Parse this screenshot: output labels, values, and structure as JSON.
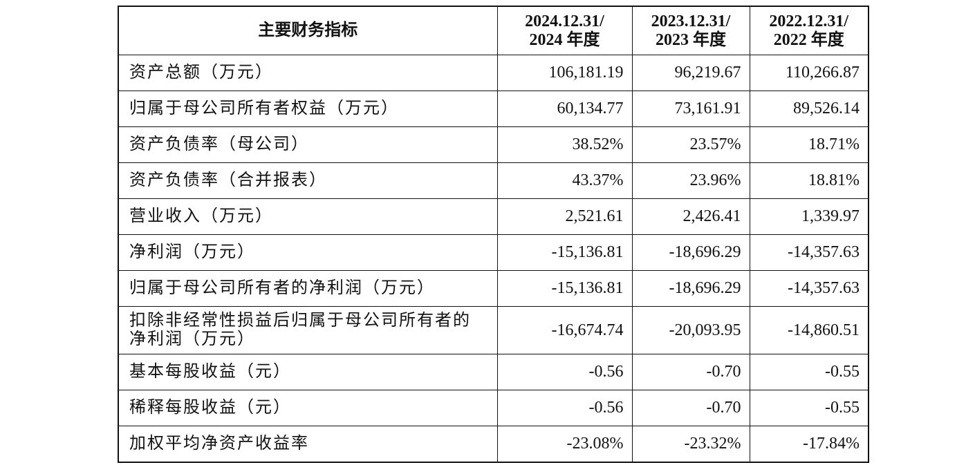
{
  "table": {
    "header": [
      [
        "主要财务指标"
      ],
      [
        "2024.12.31/",
        "2024 年度"
      ],
      [
        "2023.12.31/",
        "2023 年度"
      ],
      [
        "2022.12.31/",
        "2022 年度"
      ]
    ],
    "rows": [
      [
        "资产总额（万元）",
        "106,181.19",
        "96,219.67",
        "110,266.87"
      ],
      [
        "归属于母公司所有者权益（万元）",
        "60,134.77",
        "73,161.91",
        "89,526.14"
      ],
      [
        "资产负债率（母公司）",
        "38.52%",
        "23.57%",
        "18.71%"
      ],
      [
        "资产负债率（合并报表）",
        "43.37%",
        "23.96%",
        "18.81%"
      ],
      [
        "营业收入（万元）",
        "2,521.61",
        "2,426.41",
        "1,339.97"
      ],
      [
        "净利润（万元）",
        "-15,136.81",
        "-18,696.29",
        "-14,357.63"
      ],
      [
        "归属于母公司所有者的净利润（万元）",
        "-15,136.81",
        "-18,696.29",
        "-14,357.63"
      ],
      [
        "扣除非经常性损益后归属于母公司所有者的净利润（万元）",
        "-16,674.74",
        "-20,093.95",
        "-14,860.51"
      ],
      [
        "基本每股收益（元）",
        "-0.56",
        "-0.70",
        "-0.55"
      ],
      [
        "稀释每股收益（元）",
        "-0.56",
        "-0.70",
        "-0.55"
      ],
      [
        "加权平均净资产收益率",
        "-23.08%",
        "-23.32%",
        "-17.84%"
      ]
    ]
  }
}
